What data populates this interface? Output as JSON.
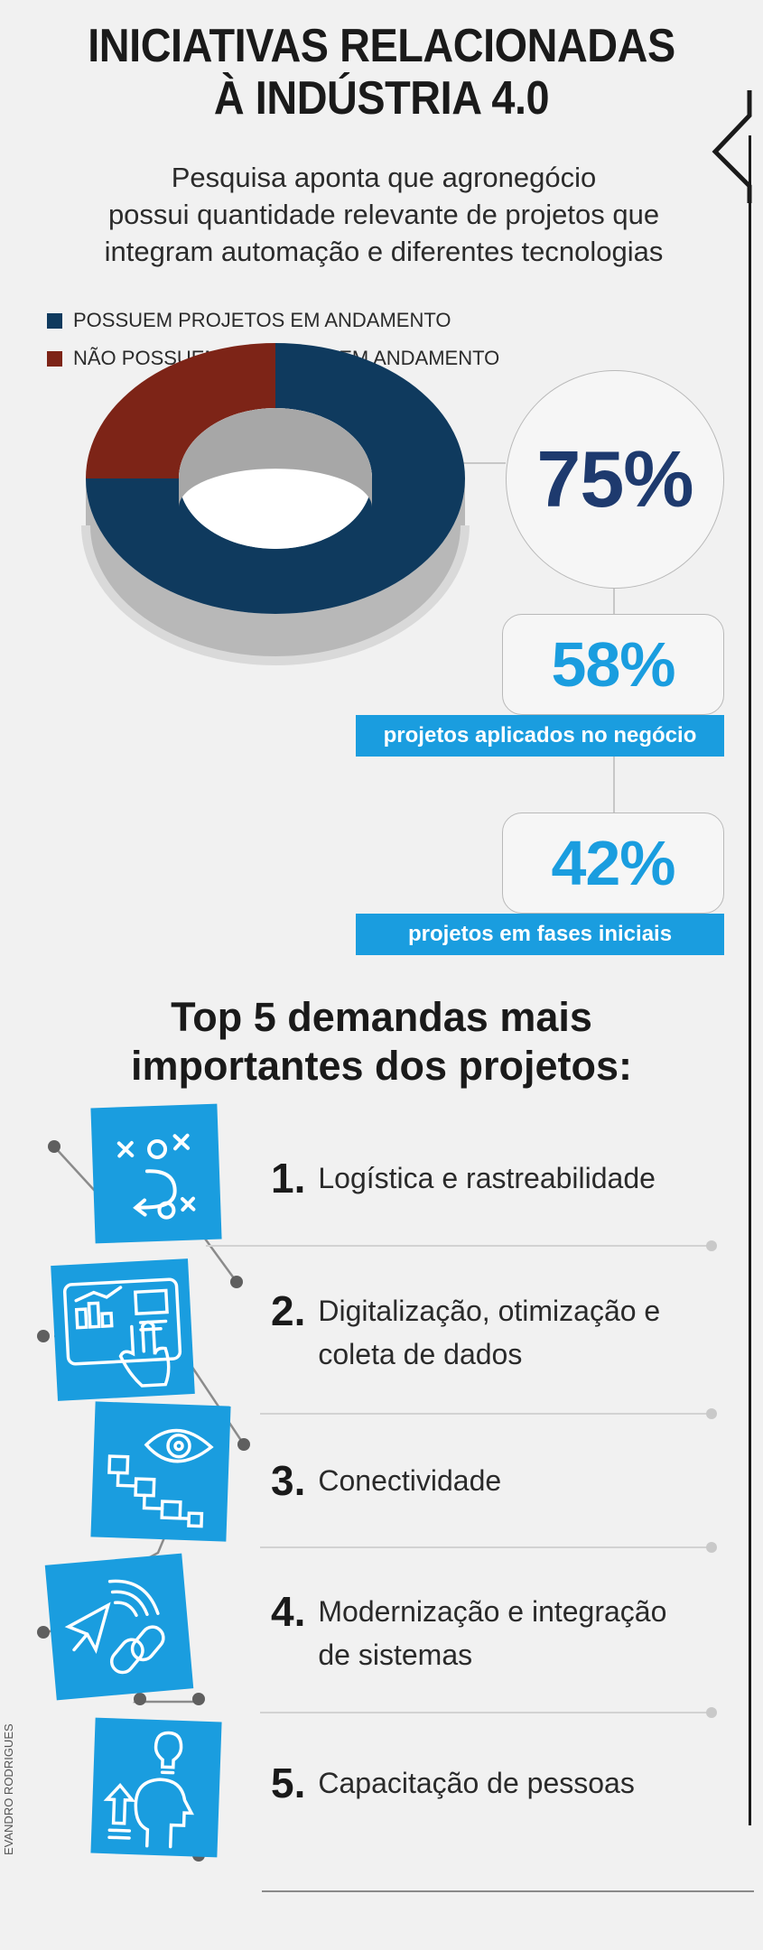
{
  "header": {
    "title_line1": "INICIATIVAS RELACIONADAS",
    "title_line2": "À INDÚSTRIA 4.0",
    "subtitle_line1": "Pesquisa aponta que agronegócio",
    "subtitle_line2": "possui quantidade relevante de projetos que",
    "subtitle_line3": "integram automação e diferentes tecnologias"
  },
  "colors": {
    "dark_blue": "#0f3a5e",
    "dark_red": "#7d2417",
    "accent_blue": "#1a9ddf",
    "number_navy": "#1e3a6e"
  },
  "chart_data": {
    "type": "pie",
    "donut": true,
    "legend_position": "top-left",
    "series": [
      {
        "name": "POSSUEM PROJETOS EM ANDAMENTO",
        "value": 75,
        "color": "#0f3a5e"
      },
      {
        "name": "NÃO POSSUEM PROJETOS EM ANDAMENTO",
        "value": 25,
        "color": "#7d2417"
      }
    ],
    "value_label": "75%",
    "breakdown": [
      {
        "value": 58,
        "label_value": "58%",
        "label": "projetos aplicados no negócio"
      },
      {
        "value": 42,
        "label_value": "42%",
        "label": "projetos em fases iniciais"
      }
    ]
  },
  "top5": {
    "title_line1": "Top 5 demandas mais",
    "title_line2": "importantes dos projetos:",
    "items": [
      {
        "number": "1.",
        "line1": "Logística e rastreabilidade",
        "line2": "",
        "icon": "logistics-strategy-icon"
      },
      {
        "number": "2.",
        "line1": "Digitalização, otimização e",
        "line2": "coleta de dados",
        "icon": "digital-dashboard-touch-icon"
      },
      {
        "number": "3.",
        "line1": "Conectividade",
        "line2": "",
        "icon": "eye-network-icon"
      },
      {
        "number": "4.",
        "line1": "Modernização e integração",
        "line2": "de sistemas",
        "icon": "signal-link-icon"
      },
      {
        "number": "5.",
        "line1": "Capacitação de pessoas",
        "line2": "",
        "icon": "person-idea-icon"
      }
    ]
  },
  "credit": "EVANDRO RODRIGUES"
}
